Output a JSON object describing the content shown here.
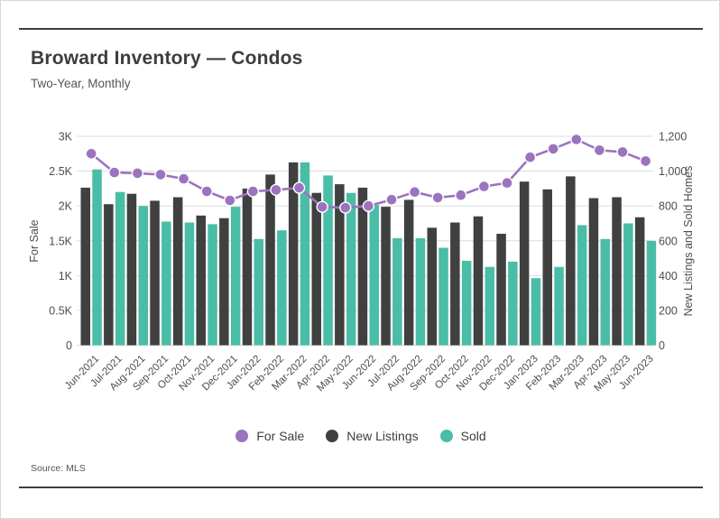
{
  "header": {
    "title": "Broward Inventory — Condos",
    "subtitle": "Two-Year, Monthly"
  },
  "footer": {
    "source": "Source: MLS"
  },
  "colors": {
    "for_sale_purple": "#9c73be",
    "new_listings_dark": "#404040",
    "sold_teal": "#4abda6",
    "gridline": "#dcdcdc",
    "axis_text": "#4d4d4d"
  },
  "chart_data": {
    "type": "bar+line combo, dual axis",
    "title": "Broward Inventory — Condos",
    "subtitle": "Two-Year, Monthly",
    "grid": true,
    "legend_position": "bottom",
    "categories": [
      "Jun-2021",
      "Jul-2021",
      "Aug-2021",
      "Sep-2021",
      "Oct-2021",
      "Nov-2021",
      "Dec-2021",
      "Jan-2022",
      "Feb-2022",
      "Mar-2022",
      "Apr-2022",
      "May-2022",
      "Jun-2022",
      "Jul-2022",
      "Aug-2022",
      "Sep-2022",
      "Oct-2022",
      "Nov-2022",
      "Dec-2022",
      "Jan-2023",
      "Feb-2023",
      "Mar-2023",
      "Apr-2023",
      "May-2023",
      "Jun-2023"
    ],
    "series": [
      {
        "name": "For Sale",
        "type": "line",
        "axis": "left",
        "color": "#9c73be",
        "values": [
          2750,
          2480,
          2470,
          2450,
          2390,
          2210,
          2080,
          2210,
          2230,
          2260,
          1985,
          1975,
          2000,
          2090,
          2200,
          2120,
          2155,
          2280,
          2330,
          2700,
          2820,
          2955,
          2800,
          2775,
          2645
        ]
      },
      {
        "name": "New Listings",
        "type": "bar",
        "axis": "right",
        "color": "#404040",
        "values": [
          905,
          810,
          870,
          830,
          850,
          745,
          730,
          900,
          980,
          1050,
          875,
          925,
          905,
          795,
          835,
          675,
          705,
          740,
          640,
          940,
          895,
          970,
          845,
          850,
          735
        ]
      },
      {
        "name": "Sold",
        "type": "bar",
        "axis": "right",
        "color": "#4abda6",
        "values": [
          1010,
          880,
          800,
          710,
          705,
          695,
          795,
          610,
          660,
          1050,
          975,
          875,
          805,
          615,
          615,
          560,
          485,
          450,
          480,
          385,
          450,
          690,
          610,
          700,
          600
        ]
      }
    ],
    "left_axis": {
      "label": "For Sale",
      "min": 0,
      "max": 3000,
      "ticks": [
        "0",
        "0.5K",
        "1K",
        "1.5K",
        "2K",
        "2.5K",
        "3K"
      ]
    },
    "right_axis": {
      "label": "New Listings and Sold Homes",
      "min": 0,
      "max": 1200,
      "ticks": [
        "0",
        "200",
        "400",
        "600",
        "800",
        "1,000",
        "1,200"
      ]
    }
  }
}
